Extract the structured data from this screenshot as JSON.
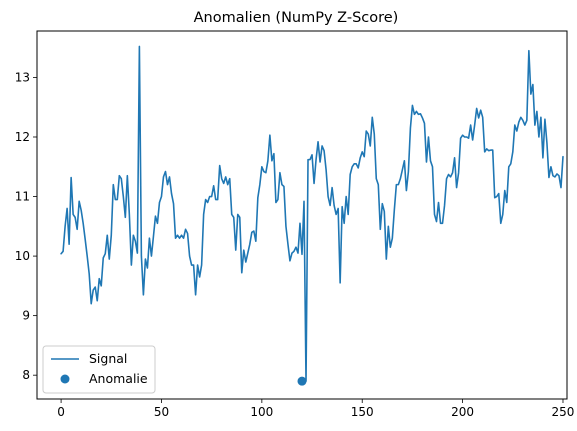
{
  "chart_data": {
    "type": "line",
    "title": "Anomalien (NumPy Z-Score)",
    "xlabel": "",
    "ylabel": "",
    "xlim": [
      -12,
      252
    ],
    "ylim": [
      7.6,
      13.78
    ],
    "x_ticks": [
      0,
      50,
      100,
      150,
      200,
      250
    ],
    "y_ticks": [
      8,
      9,
      10,
      11,
      12,
      13
    ],
    "grid": false,
    "legend_position": "lower-left",
    "colors": {
      "series": "#1f77b4"
    },
    "series": [
      {
        "name": "Signal",
        "type": "line",
        "x_start": 0,
        "values": [
          10.04,
          10.08,
          10.5,
          10.8,
          10.2,
          11.32,
          10.7,
          10.65,
          10.45,
          10.92,
          10.77,
          10.55,
          10.28,
          10.0,
          9.7,
          9.2,
          9.43,
          9.48,
          9.25,
          9.62,
          9.5,
          9.97,
          10.04,
          10.35,
          9.95,
          10.35,
          11.2,
          10.95,
          10.95,
          11.35,
          11.3,
          11.0,
          10.65,
          11.35,
          10.7,
          9.85,
          10.35,
          10.25,
          10.05,
          13.52,
          10.0,
          9.35,
          9.95,
          9.8,
          10.3,
          10.0,
          10.33,
          10.67,
          10.55,
          10.9,
          11.0,
          11.33,
          11.42,
          11.2,
          11.33,
          11.05,
          10.88,
          10.3,
          10.35,
          10.3,
          10.35,
          10.3,
          10.45,
          10.38,
          10.0,
          9.85,
          9.85,
          9.35,
          9.85,
          9.65,
          9.85,
          10.7,
          10.95,
          10.9,
          11.0,
          11.0,
          11.18,
          10.95,
          10.95,
          11.52,
          11.3,
          11.22,
          11.33,
          11.2,
          11.3,
          10.7,
          10.65,
          10.1,
          10.7,
          10.65,
          9.72,
          10.1,
          9.9,
          10.05,
          10.2,
          10.4,
          10.42,
          10.25,
          10.98,
          11.2,
          11.5,
          11.42,
          11.4,
          11.6,
          12.03,
          11.6,
          11.72,
          10.9,
          10.95,
          11.4,
          11.2,
          11.17,
          10.5,
          10.2,
          9.92,
          10.05,
          10.08,
          10.15,
          10.05,
          10.55,
          10.03,
          10.92,
          7.9,
          11.62,
          11.62,
          11.7,
          11.22,
          11.62,
          11.92,
          11.58,
          11.85,
          11.77,
          11.45,
          11.0,
          10.85,
          11.15,
          10.85,
          10.7,
          10.8,
          9.55,
          10.83,
          10.55,
          11.0,
          10.7,
          11.37,
          11.5,
          11.55,
          11.55,
          11.48,
          11.65,
          11.75,
          11.67,
          12.1,
          12.05,
          11.85,
          12.33,
          12.05,
          11.3,
          11.2,
          10.45,
          10.88,
          10.75,
          9.95,
          10.5,
          10.15,
          10.3,
          10.78,
          11.2,
          11.2,
          11.3,
          11.45,
          11.6,
          11.1,
          11.42,
          12.15,
          12.53,
          12.38,
          12.43,
          12.38,
          12.39,
          12.32,
          12.23,
          11.58,
          12.0,
          11.6,
          11.5,
          10.7,
          10.58,
          10.9,
          10.55,
          10.55,
          10.85,
          11.3,
          11.37,
          11.33,
          11.4,
          11.65,
          11.15,
          11.4,
          11.98,
          12.03,
          12.0,
          12.0,
          11.98,
          12.2,
          11.95,
          12.2,
          12.48,
          12.32,
          12.45,
          12.33,
          11.75,
          11.8,
          11.77,
          11.78,
          11.78,
          10.98,
          11.0,
          11.05,
          10.55,
          10.7,
          11.1,
          10.9,
          11.5,
          11.55,
          11.75,
          12.2,
          12.1,
          12.25,
          12.33,
          12.28,
          12.2,
          12.28,
          13.45,
          12.72,
          12.88,
          12.2,
          12.43,
          12.0,
          12.33,
          11.65,
          12.3,
          11.9,
          11.32,
          11.5,
          11.35,
          11.33,
          11.38,
          11.35,
          11.15,
          11.67
        ]
      },
      {
        "name": "Anomalie",
        "type": "scatter",
        "points": [
          {
            "x": 120,
            "y": 7.9
          }
        ]
      }
    ]
  }
}
